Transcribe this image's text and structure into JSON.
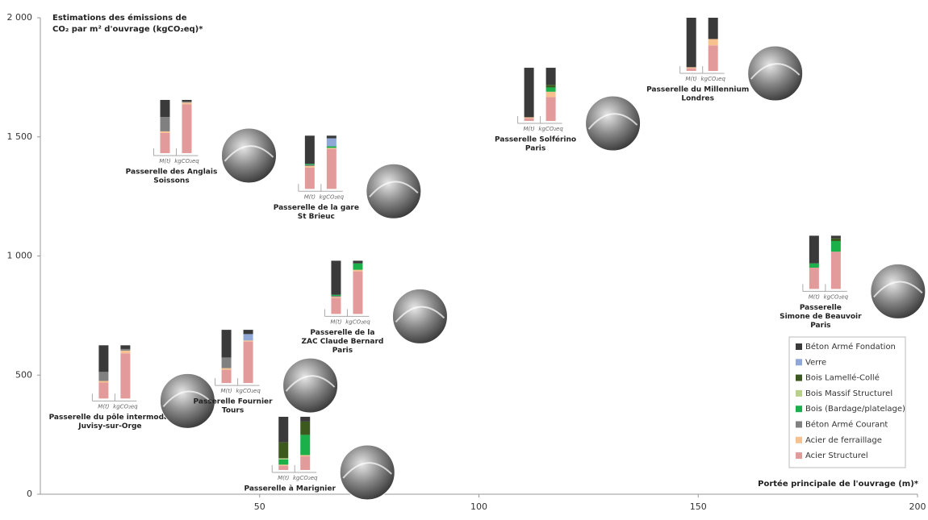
{
  "chart_data": {
    "type": "scatter",
    "y_label": [
      "Estimations des émissions de",
      "CO₂ par m² d'ouvrage (kgCO₂eq)*"
    ],
    "x_label": "Portée principale de l'ouvrage (m)*",
    "xlim": [
      0,
      200
    ],
    "ylim": [
      0,
      2000
    ],
    "xticks": [
      50,
      100,
      150,
      200
    ],
    "yticks": [
      {
        "value": 0,
        "label": "0"
      },
      {
        "value": 500,
        "label": "500"
      },
      {
        "value": 1000,
        "label": "1 000"
      },
      {
        "value": 1500,
        "label": "1 500"
      },
      {
        "value": 2000,
        "label": "2 000"
      }
    ],
    "bar_labels": [
      "M(t)",
      "kgCO₂eq"
    ],
    "materials": [
      {
        "name": "Béton Armé Fondation",
        "color": "#3a3a3a"
      },
      {
        "name": "Verre",
        "color": "#8fa8d8"
      },
      {
        "name": "Bois Lamellé-Collé",
        "color": "#3d5a1e"
      },
      {
        "name": "Bois Massif Structurel",
        "color": "#b8d08a"
      },
      {
        "name": "Bois (Bardage/platelage)",
        "color": "#1bb04a"
      },
      {
        "name": "Béton Armé Courant",
        "color": "#808080"
      },
      {
        "name": "Acier de ferraillage",
        "color": "#f6c08f"
      },
      {
        "name": "Acier Structurel",
        "color": "#e39a9a"
      }
    ],
    "bridges": [
      {
        "name": [
          "Passerelle du pôle intermodal",
          "Juvisy-sur-Orge"
        ],
        "x": 17,
        "y": 625,
        "mass": [
          50,
          0,
          0,
          0,
          0,
          17,
          3,
          30
        ],
        "co2": [
          7,
          0,
          0,
          0,
          0,
          3,
          5,
          85
        ]
      },
      {
        "name": [
          "Passerelle des Anglais",
          "Soissons"
        ],
        "x": 31,
        "y": 1655,
        "mass": [
          32,
          0,
          0,
          0,
          0,
          27,
          3,
          38
        ],
        "co2": [
          3,
          0,
          0,
          0,
          0,
          2,
          3,
          92
        ]
      },
      {
        "name": [
          "Passerelle Fournier",
          "Tours"
        ],
        "x": 45,
        "y": 690,
        "mass": [
          52,
          0,
          0,
          0,
          0,
          20,
          3,
          25
        ],
        "co2": [
          8,
          12,
          0,
          0,
          0,
          0,
          2,
          78
        ]
      },
      {
        "name": [
          "Passerelle à Marignier"
        ],
        "x": 58,
        "y": 325,
        "mass": [
          48,
          0,
          30,
          2,
          10,
          0,
          2,
          8
        ],
        "co2": [
          9,
          0,
          25,
          0,
          38,
          0,
          2,
          26
        ]
      },
      {
        "name": [
          "Passerelle de la gare",
          "St Brieuc"
        ],
        "x": 64,
        "y": 1505,
        "mass": [
          53,
          0,
          0,
          0,
          2,
          2,
          3,
          40
        ],
        "co2": [
          5,
          15,
          0,
          0,
          3,
          0,
          2,
          75
        ]
      },
      {
        "name": [
          "Passerelle de la",
          "ZAC Claude Bernard",
          "Paris"
        ],
        "x": 70,
        "y": 980,
        "mass": [
          64,
          0,
          0,
          0,
          2,
          2,
          2,
          30
        ],
        "co2": [
          5,
          0,
          0,
          0,
          12,
          0,
          3,
          80
        ]
      },
      {
        "name": [
          "Passerelle Solférino",
          "Paris"
        ],
        "x": 114,
        "y": 1790,
        "mass": [
          93,
          0,
          0,
          0,
          0,
          0,
          2,
          5
        ],
        "co2": [
          32,
          0,
          5,
          0,
          8,
          0,
          10,
          45
        ]
      },
      {
        "name": [
          "Passerelle  du Millennium",
          "Londres"
        ],
        "x": 151,
        "y": 2000,
        "mass": [
          93,
          0,
          0,
          0,
          0,
          0,
          2,
          5
        ],
        "co2": [
          40,
          0,
          0,
          0,
          0,
          0,
          12,
          48
        ]
      },
      {
        "name": [
          "Passerelle",
          "Simone de Beauvoir",
          "Paris"
        ],
        "x": 179,
        "y": 1085,
        "mass": [
          52,
          0,
          0,
          0,
          8,
          0,
          0,
          40
        ],
        "co2": [
          5,
          0,
          5,
          0,
          20,
          0,
          0,
          70
        ]
      }
    ]
  }
}
